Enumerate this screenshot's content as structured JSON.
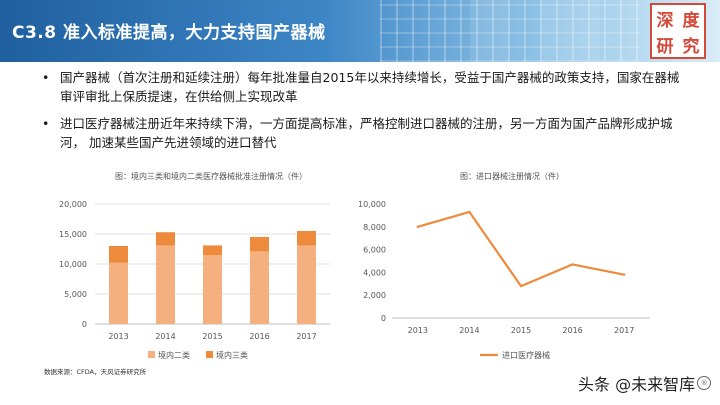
{
  "header": {
    "title": "C3.8  准入标准提高，大力支持国产器械",
    "seal_chars": [
      "深",
      "度",
      "研",
      "究"
    ]
  },
  "bullets": [
    {
      "marker": "•",
      "text": "国产器械（首次注册和延续注册）每年批准量自2015年以来持续增长，受益于国产器械的政策支持，国家在器械审评审批上保质提速，在供给侧上实现改革"
    },
    {
      "marker": "•",
      "text": "进口医疗器械注册近年来持续下滑，一方面提高标准，严格控制进口器械的注册，另一方面为国产品牌形成护城河， 加速某些国产先进领域的进口替代"
    }
  ],
  "chart_data": [
    {
      "type": "bar",
      "stacked": true,
      "title": "图：境内三类和境内二类医疗器械批准注册情况（件）",
      "categories": [
        "2013",
        "2014",
        "2015",
        "2016",
        "2017"
      ],
      "series": [
        {
          "name": "境内二类",
          "values": [
            10200,
            13100,
            11500,
            12100,
            13100
          ],
          "color": "#f5b07f"
        },
        {
          "name": "境内三类",
          "values": [
            2800,
            2200,
            1600,
            2400,
            2400
          ],
          "color": "#ee8a3c"
        }
      ],
      "ylim": [
        0,
        20000
      ],
      "yticks": [
        "0",
        "5,000",
        "10,000",
        "15,000",
        "20,000"
      ],
      "grid": true,
      "legend": "bottom"
    },
    {
      "type": "line",
      "title": "图：进口器械注册情况（件）",
      "categories": [
        "2013",
        "2014",
        "2015",
        "2016",
        "2017"
      ],
      "series": [
        {
          "name": "进口医疗器械",
          "values": [
            8000,
            9300,
            2800,
            4700,
            3800
          ],
          "color": "#ee8a3c"
        }
      ],
      "ylim": [
        0,
        10000
      ],
      "yticks": [
        "0",
        "2,000",
        "4,000",
        "6,000",
        "8,000",
        "10,000"
      ],
      "grid": false,
      "legend": "bottom"
    }
  ],
  "footer": {
    "source": "数据来源：CFDA，天风证券研究所",
    "watermark": "头条 @未来智库",
    "watermark_icon": "®"
  }
}
